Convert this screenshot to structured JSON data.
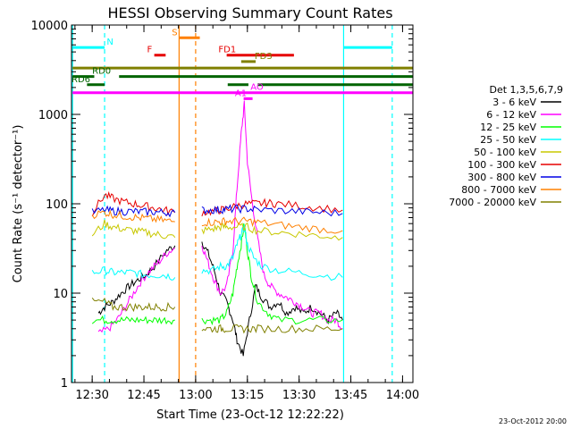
{
  "chart_data": {
    "type": "line",
    "title": "HESSI Observing Summary Count Rates",
    "xlabel": "Start Time (23-Oct-12 12:22:22)",
    "ylabel": "Count Rate (s⁻¹ detector⁻¹)",
    "footer": "23-Oct-2012 20:00",
    "y_scale": "log",
    "ylim": [
      1,
      10000
    ],
    "xlim_minutes": [
      12.4,
      14.05
    ],
    "x_ticks": [
      {
        "t": 12.5,
        "label": "12:30"
      },
      {
        "t": 12.75,
        "label": "12:45"
      },
      {
        "t": 13.0,
        "label": "13:00"
      },
      {
        "t": 13.25,
        "label": "13:15"
      },
      {
        "t": 13.5,
        "label": "13:30"
      },
      {
        "t": 13.75,
        "label": "13:45"
      },
      {
        "t": 14.0,
        "label": "14:00"
      }
    ],
    "y_ticks": [
      {
        "v": 1,
        "label": "1"
      },
      {
        "v": 10,
        "label": "10"
      },
      {
        "v": 100,
        "label": "100"
      },
      {
        "v": 1000,
        "label": "1000"
      },
      {
        "v": 10000,
        "label": "10000"
      }
    ],
    "legend": {
      "position": "right",
      "header": "Det 1,3,5,6,7,9",
      "entries": [
        {
          "label": "3 - 6 keV",
          "color": "#000000"
        },
        {
          "label": "6 - 12 keV",
          "color": "#ff00ff"
        },
        {
          "label": "12 - 25 keV",
          "color": "#00ff00"
        },
        {
          "label": "25 - 50 keV",
          "color": "#00ffff"
        },
        {
          "label": "50 - 100 keV",
          "color": "#c8c800"
        },
        {
          "label": "100 - 300 keV",
          "color": "#e60000"
        },
        {
          "label": "300 - 800 keV",
          "color": "#0000e6"
        },
        {
          "label": "800 - 7000 keV",
          "color": "#ff8000"
        },
        {
          "label": "7000 - 20000 keV",
          "color": "#808000"
        }
      ]
    },
    "intervals": [
      {
        "label": "N",
        "color": "#00ffff",
        "y": 5600,
        "segments": [
          [
            12.405,
            12.56
          ],
          [
            13.715,
            13.95
          ]
        ],
        "label_t": 12.57
      },
      {
        "label": "S",
        "color": "#ff8000",
        "y": 7200,
        "segments": [
          [
            12.92,
            13.02
          ]
        ],
        "label_t": 12.885
      },
      {
        "label": "F",
        "color": "#e60000",
        "y": 4600,
        "segments": [
          [
            12.8,
            12.855
          ]
        ],
        "label_t": 12.765
      },
      {
        "label": "FD1",
        "color": "#e60000",
        "y": 4600,
        "segments": [
          [
            13.15,
            13.475
          ]
        ],
        "label_t": 13.11
      },
      {
        "label": "FD3",
        "color": "#808000",
        "y": 3900,
        "segments": [
          [
            13.22,
            13.29
          ]
        ],
        "label_t": 13.285
      },
      {
        "label": "",
        "color": "#808000",
        "y": 3300,
        "segments": [
          [
            12.405,
            14.05
          ]
        ],
        "label_t": 12.4
      },
      {
        "label": "RD0",
        "color": "#006400",
        "y": 2650,
        "segments": [
          [
            12.405,
            12.51
          ],
          [
            12.63,
            14.05
          ]
        ],
        "label_t": 12.5
      },
      {
        "label": "RD6",
        "color": "#006400",
        "y": 2150,
        "segments": [
          [
            12.475,
            12.56
          ],
          [
            13.155,
            13.255
          ],
          [
            13.3,
            14.05
          ]
        ],
        "label_t": 12.4
      },
      {
        "label": "AO",
        "color": "#ff00ff",
        "y": 1750,
        "segments": [
          [
            12.405,
            14.05
          ]
        ],
        "label_t": 13.265
      },
      {
        "label": "A1",
        "color": "#ff00ff",
        "y": 1500,
        "segments": [
          [
            13.232,
            13.275
          ]
        ],
        "label_t": 13.19
      }
    ],
    "vertical_lines": [
      {
        "t": 12.405,
        "color": "#00ffff",
        "style": "solid"
      },
      {
        "t": 12.56,
        "color": "#00ffff",
        "style": "dashed"
      },
      {
        "t": 12.92,
        "color": "#ff8000",
        "style": "solid"
      },
      {
        "t": 13.0,
        "color": "#ff8000",
        "style": "dashed"
      },
      {
        "t": 13.715,
        "color": "#00ffff",
        "style": "solid"
      },
      {
        "t": 13.95,
        "color": "#00ffff",
        "style": "dashed"
      }
    ],
    "data_segments": [
      [
        12.495,
        12.92
      ],
      [
        13.03,
        13.73
      ]
    ],
    "series": [
      {
        "name": "3 - 6 keV",
        "color": "#000000",
        "points": [
          [
            12.53,
            6
          ],
          [
            12.56,
            7
          ],
          [
            12.6,
            8
          ],
          [
            12.64,
            10
          ],
          [
            12.68,
            12
          ],
          [
            12.72,
            14
          ],
          [
            12.76,
            16
          ],
          [
            12.8,
            20
          ],
          [
            12.86,
            30
          ],
          [
            12.9,
            34
          ],
          [
            13.03,
            38
          ],
          [
            13.06,
            28
          ],
          [
            13.09,
            18
          ],
          [
            13.12,
            10
          ],
          [
            13.15,
            8
          ],
          [
            13.18,
            5
          ],
          [
            13.2,
            3
          ],
          [
            13.23,
            2
          ],
          [
            13.26,
            5
          ],
          [
            13.29,
            12
          ],
          [
            13.32,
            9
          ],
          [
            13.36,
            7
          ],
          [
            13.4,
            8
          ],
          [
            13.44,
            6
          ],
          [
            13.48,
            7
          ],
          [
            13.52,
            6
          ],
          [
            13.56,
            7
          ],
          [
            13.6,
            6
          ],
          [
            13.64,
            5
          ],
          [
            13.68,
            6
          ],
          [
            13.71,
            5
          ]
        ]
      },
      {
        "name": "6 - 12 keV",
        "color": "#ff00ff",
        "points": [
          [
            12.53,
            3.5
          ],
          [
            12.58,
            4
          ],
          [
            12.62,
            5
          ],
          [
            12.66,
            7
          ],
          [
            12.7,
            10
          ],
          [
            12.74,
            14
          ],
          [
            12.78,
            18
          ],
          [
            12.82,
            22
          ],
          [
            12.86,
            28
          ],
          [
            12.9,
            32
          ],
          [
            13.03,
            35
          ],
          [
            13.06,
            22
          ],
          [
            13.09,
            14
          ],
          [
            13.12,
            10
          ],
          [
            13.15,
            12
          ],
          [
            13.18,
            30
          ],
          [
            13.2,
            150
          ],
          [
            13.22,
            600
          ],
          [
            13.235,
            1300
          ],
          [
            13.25,
            300
          ],
          [
            13.27,
            120
          ],
          [
            13.3,
            40
          ],
          [
            13.33,
            16
          ],
          [
            13.36,
            12
          ],
          [
            13.4,
            10
          ],
          [
            13.44,
            9
          ],
          [
            13.48,
            8
          ],
          [
            13.52,
            7
          ],
          [
            13.56,
            6
          ],
          [
            13.6,
            6
          ],
          [
            13.64,
            5
          ],
          [
            13.68,
            5
          ],
          [
            13.71,
            4
          ]
        ]
      },
      {
        "name": "12 - 25 keV",
        "color": "#00ff00",
        "points": [
          [
            12.5,
            5
          ],
          [
            12.56,
            5
          ],
          [
            12.6,
            5
          ],
          [
            12.65,
            5
          ],
          [
            12.7,
            5
          ],
          [
            12.75,
            5
          ],
          [
            12.8,
            5
          ],
          [
            12.85,
            5
          ],
          [
            12.9,
            5
          ],
          [
            13.03,
            5
          ],
          [
            13.08,
            5
          ],
          [
            13.12,
            5
          ],
          [
            13.15,
            6
          ],
          [
            13.18,
            10
          ],
          [
            13.2,
            20
          ],
          [
            13.22,
            35
          ],
          [
            13.235,
            60
          ],
          [
            13.25,
            30
          ],
          [
            13.27,
            15
          ],
          [
            13.3,
            8
          ],
          [
            13.35,
            6
          ],
          [
            13.4,
            5
          ],
          [
            13.5,
            5
          ],
          [
            13.6,
            5
          ],
          [
            13.71,
            5
          ]
        ]
      },
      {
        "name": "25 - 50 keV",
        "color": "#00ffff",
        "points": [
          [
            12.5,
            17
          ],
          [
            12.56,
            18
          ],
          [
            12.6,
            17
          ],
          [
            12.65,
            17
          ],
          [
            12.7,
            17
          ],
          [
            12.75,
            16
          ],
          [
            12.8,
            16
          ],
          [
            12.85,
            16
          ],
          [
            12.9,
            15
          ],
          [
            13.03,
            18
          ],
          [
            13.08,
            18
          ],
          [
            13.12,
            20
          ],
          [
            13.15,
            20
          ],
          [
            13.18,
            25
          ],
          [
            13.2,
            35
          ],
          [
            13.22,
            45
          ],
          [
            13.235,
            55
          ],
          [
            13.25,
            35
          ],
          [
            13.28,
            25
          ],
          [
            13.32,
            20
          ],
          [
            13.4,
            18
          ],
          [
            13.5,
            17
          ],
          [
            13.6,
            16
          ],
          [
            13.71,
            15
          ]
        ]
      },
      {
        "name": "50 - 100 keV",
        "color": "#c8c800",
        "points": [
          [
            12.5,
            45
          ],
          [
            12.56,
            60
          ],
          [
            12.6,
            55
          ],
          [
            12.65,
            52
          ],
          [
            12.7,
            50
          ],
          [
            12.75,
            48
          ],
          [
            12.8,
            46
          ],
          [
            12.85,
            44
          ],
          [
            12.9,
            42
          ],
          [
            13.03,
            50
          ],
          [
            13.08,
            52
          ],
          [
            13.12,
            55
          ],
          [
            13.15,
            55
          ],
          [
            13.2,
            55
          ],
          [
            13.25,
            55
          ],
          [
            13.3,
            50
          ],
          [
            13.4,
            48
          ],
          [
            13.5,
            46
          ],
          [
            13.6,
            44
          ],
          [
            13.71,
            42
          ]
        ]
      },
      {
        "name": "100 - 300 keV",
        "color": "#e60000",
        "points": [
          [
            12.5,
            80
          ],
          [
            12.56,
            125
          ],
          [
            12.6,
            115
          ],
          [
            12.65,
            105
          ],
          [
            12.7,
            100
          ],
          [
            12.75,
            95
          ],
          [
            12.8,
            90
          ],
          [
            12.85,
            85
          ],
          [
            12.9,
            80
          ],
          [
            13.03,
            80
          ],
          [
            13.08,
            82
          ],
          [
            13.12,
            85
          ],
          [
            13.15,
            88
          ],
          [
            13.2,
            95
          ],
          [
            13.25,
            100
          ],
          [
            13.3,
            100
          ],
          [
            13.35,
            102
          ],
          [
            13.4,
            100
          ],
          [
            13.5,
            95
          ],
          [
            13.6,
            90
          ],
          [
            13.71,
            85
          ]
        ]
      },
      {
        "name": "300 - 800 keV",
        "color": "#0000e6",
        "points": [
          [
            12.5,
            80
          ],
          [
            12.56,
            85
          ],
          [
            12.6,
            83
          ],
          [
            12.65,
            82
          ],
          [
            12.7,
            82
          ],
          [
            12.75,
            81
          ],
          [
            12.8,
            81
          ],
          [
            12.85,
            80
          ],
          [
            12.9,
            80
          ],
          [
            13.03,
            85
          ],
          [
            13.08,
            85
          ],
          [
            13.12,
            86
          ],
          [
            13.15,
            87
          ],
          [
            13.2,
            88
          ],
          [
            13.25,
            88
          ],
          [
            13.3,
            86
          ],
          [
            13.4,
            84
          ],
          [
            13.5,
            82
          ],
          [
            13.6,
            80
          ],
          [
            13.71,
            78
          ]
        ]
      },
      {
        "name": "800 - 7000 keV",
        "color": "#ff8000",
        "points": [
          [
            12.5,
            75
          ],
          [
            12.56,
            80
          ],
          [
            12.6,
            76
          ],
          [
            12.65,
            73
          ],
          [
            12.7,
            71
          ],
          [
            12.75,
            69
          ],
          [
            12.8,
            67
          ],
          [
            12.85,
            65
          ],
          [
            12.9,
            63
          ],
          [
            13.03,
            62
          ],
          [
            13.08,
            62
          ],
          [
            13.12,
            63
          ],
          [
            13.15,
            64
          ],
          [
            13.2,
            64
          ],
          [
            13.25,
            64
          ],
          [
            13.3,
            62
          ],
          [
            13.4,
            58
          ],
          [
            13.5,
            55
          ],
          [
            13.6,
            52
          ],
          [
            13.71,
            50
          ]
        ]
      },
      {
        "name": "7000 - 20000 keV",
        "color": "#808000",
        "points": [
          [
            12.5,
            8
          ],
          [
            12.56,
            8
          ],
          [
            12.6,
            7
          ],
          [
            12.65,
            7
          ],
          [
            12.7,
            7
          ],
          [
            12.75,
            7
          ],
          [
            12.8,
            7
          ],
          [
            12.85,
            7
          ],
          [
            12.9,
            7
          ],
          [
            13.03,
            4
          ],
          [
            13.08,
            4
          ],
          [
            13.12,
            4
          ],
          [
            13.15,
            4
          ],
          [
            13.2,
            4
          ],
          [
            13.25,
            4
          ],
          [
            13.3,
            4
          ],
          [
            13.4,
            4
          ],
          [
            13.5,
            4
          ],
          [
            13.6,
            4
          ],
          [
            13.71,
            4
          ]
        ]
      }
    ]
  }
}
